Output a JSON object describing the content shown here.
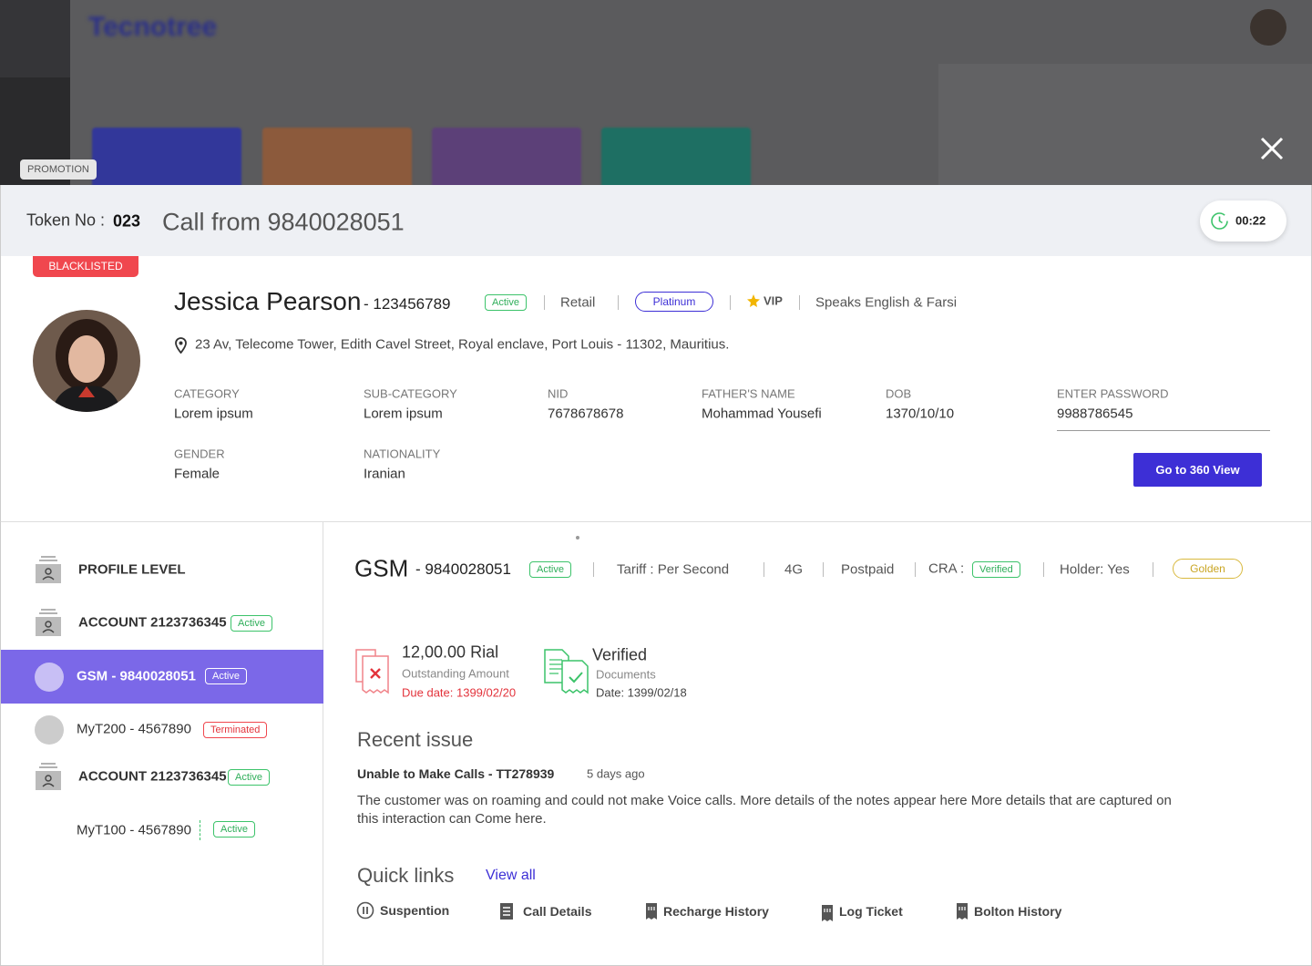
{
  "background": {
    "brand": "Tecnotree",
    "promotion": "PROMOTION"
  },
  "call_header": {
    "token_label": "Token No :",
    "token": "023",
    "title": "Call from 9840028051",
    "timer": "00:22"
  },
  "customer": {
    "flag": "BLACKLISTED",
    "name": "Jessica Pearson",
    "id": "- 123456789",
    "status": "Active",
    "segment": "Retail",
    "tier": "Platinum",
    "vip": "VIP",
    "languages": "Speaks English & Farsi",
    "address": "23 Av, Telecome Tower, Edith Cavel Street, Royal enclave, Port Louis - 11302, Mauritius.",
    "fields": [
      {
        "label": "CATEGORY",
        "value": "Lorem ipsum"
      },
      {
        "label": "SUB-CATEGORY",
        "value": "Lorem ipsum"
      },
      {
        "label": "NID",
        "value": "7678678678"
      },
      {
        "label": "FATHER'S NAME",
        "value": "Mohammad Yousefi"
      },
      {
        "label": "DOB",
        "value": "1370/10/10"
      },
      {
        "label": "GENDER",
        "value": "Female"
      },
      {
        "label": "NATIONALITY",
        "value": "Iranian"
      }
    ],
    "password": {
      "label": "ENTER PASSWORD",
      "value": "9988786545"
    },
    "action": "Go to 360 View"
  },
  "accounts": [
    {
      "label": "PROFILE LEVEL"
    },
    {
      "label": "ACCOUNT 2123736345",
      "status": "Active"
    },
    {
      "label": "GSM - 9840028051",
      "status": "Active"
    },
    {
      "label": "MyT200 -  4567890",
      "status": "Terminated"
    },
    {
      "label": "ACCOUNT 2123736345",
      "status": "Active"
    },
    {
      "label": "MyT100 - 4567890",
      "status": "Active"
    }
  ],
  "service": {
    "name": "GSM",
    "number": "- 9840028051",
    "status": "Active",
    "tariff": "Tariff : Per Second",
    "network": "4G",
    "plan": "Postpaid",
    "cra_label": "CRA :",
    "cra": "Verified",
    "holder": "Holder: Yes",
    "tier": "Golden"
  },
  "summary": [
    {
      "title": "12,00.00 Rial",
      "subtitle": "Outstanding Amount",
      "note": "Due date: 1399/02/20"
    },
    {
      "title": "Verified",
      "subtitle": "Documents",
      "note": "Date: 1399/02/18"
    }
  ],
  "recent_issue": {
    "heading": "Recent issue",
    "title": "Unable to Make Calls - TT278939",
    "age": "5 days ago",
    "text": "The customer was on roaming and could not make  Voice calls. More details of the notes appear here  More details that are captured on this interaction can Come here."
  },
  "quick_links": {
    "heading": "Quick links",
    "view_all": "View all",
    "links": [
      "Suspention",
      "Call Details",
      "Recharge History",
      "Log Ticket",
      "Bolton History"
    ]
  }
}
